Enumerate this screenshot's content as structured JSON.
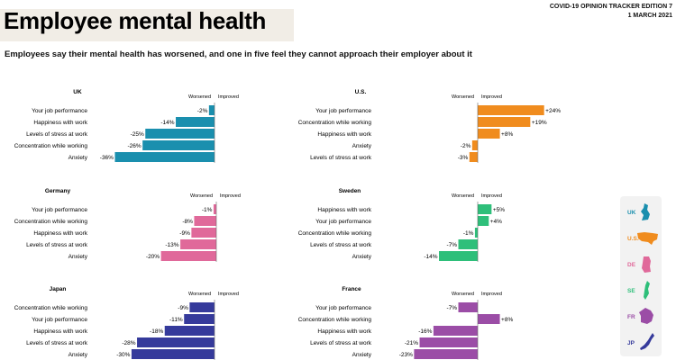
{
  "header": {
    "title": "Employee mental health",
    "edition": "COVID-19 OPINION TRACKER EDITION 7",
    "date": "1 MARCH 2021",
    "subtitle": "Employees say their mental health has worsened, and one in five feel they cannot approach their employer about it"
  },
  "legend": [
    {
      "code": "UK",
      "color": "#1a8fae",
      "icon": "uk-map-icon"
    },
    {
      "code": "U.S.",
      "color": "#f08c1e",
      "icon": "us-map-icon"
    },
    {
      "code": "DE",
      "color": "#e0699a",
      "icon": "germany-map-icon"
    },
    {
      "code": "SE",
      "color": "#2ebf7a",
      "icon": "sweden-map-icon"
    },
    {
      "code": "FR",
      "color": "#9b4da6",
      "icon": "france-map-icon"
    },
    {
      "code": "JP",
      "color": "#353a9b",
      "icon": "japan-map-icon"
    }
  ],
  "chart_data": [
    {
      "type": "bar",
      "title": "UK",
      "color": "#1a8fae",
      "legend": [
        "Worsened",
        "Improved"
      ],
      "categories": [
        "Your job performance",
        "Happiness with work",
        "Levels of stress at work",
        "Concentration while working",
        "Anxiety"
      ],
      "values": [
        -2,
        -14,
        -25,
        -26,
        -36
      ],
      "labels": [
        "-2%",
        "-14%",
        "-25%",
        "-26%",
        "-36%"
      ]
    },
    {
      "type": "bar",
      "title": "U.S.",
      "color": "#f08c1e",
      "legend": [
        "Worsened",
        "Improved"
      ],
      "categories": [
        "Your job performance",
        "Concentration while working",
        "Happiness with work",
        "Anxiety",
        "Levels of stress at work"
      ],
      "values": [
        24,
        19,
        8,
        -2,
        -3
      ],
      "labels": [
        "+24%",
        "+19%",
        "+8%",
        "-2%",
        "-3%"
      ]
    },
    {
      "type": "bar",
      "title": "Germany",
      "color": "#e0699a",
      "legend": [
        "Worsened",
        "Improved"
      ],
      "categories": [
        "Your job performance",
        "Concentration while working",
        "Happiness with work",
        "Levels of stress at work",
        "Anxiety"
      ],
      "values": [
        -1,
        -8,
        -9,
        -13,
        -20
      ],
      "labels": [
        "-1%",
        "-8%",
        "-9%",
        "-13%",
        "-20%"
      ]
    },
    {
      "type": "bar",
      "title": "Sweden",
      "color": "#2ebf7a",
      "legend": [
        "Worsened",
        "Improved"
      ],
      "categories": [
        "Happiness with work",
        "Your job performance",
        "Concentration while working",
        "Levels of stress at work",
        "Anxiety"
      ],
      "values": [
        5,
        4,
        -1,
        -7,
        -14
      ],
      "labels": [
        "+5%",
        "+4%",
        "-1%",
        "-7%",
        "-14%"
      ]
    },
    {
      "type": "bar",
      "title": "Japan",
      "color": "#353a9b",
      "legend": [
        "Worsened",
        "Improved"
      ],
      "categories": [
        "Concentration while working",
        "Your job performance",
        "Happiness with work",
        "Levels of stress at work",
        "Anxiety"
      ],
      "values": [
        -9,
        -11,
        -18,
        -28,
        -30
      ],
      "labels": [
        "-9%",
        "-11%",
        "-18%",
        "-28%",
        "-30%"
      ]
    },
    {
      "type": "bar",
      "title": "France",
      "color": "#9b4da6",
      "legend": [
        "Worsened",
        "Improved"
      ],
      "categories": [
        "Your job performance",
        "Concentration while working",
        "Happiness with work",
        "Levels of stress at work",
        "Anxiety"
      ],
      "values": [
        -7,
        8,
        -16,
        -21,
        -23
      ],
      "labels": [
        "-7%",
        "+8%",
        "-16%",
        "-21%",
        "-23%"
      ]
    }
  ]
}
